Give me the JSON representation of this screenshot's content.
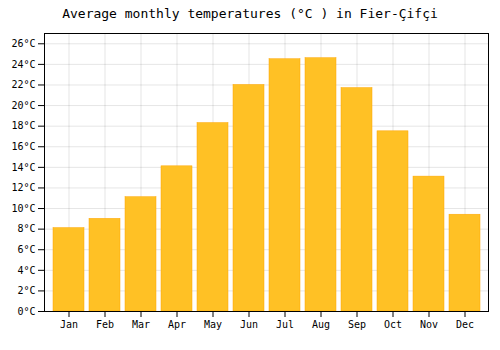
{
  "chart_data": {
    "type": "bar",
    "title": "Average monthly temperatures (°C ) in Fier-Çifçi",
    "categories": [
      "Jan",
      "Feb",
      "Mar",
      "Apr",
      "May",
      "Jun",
      "Jul",
      "Aug",
      "Sep",
      "Oct",
      "Nov",
      "Dec"
    ],
    "values": [
      8.1,
      9.0,
      11.1,
      14.1,
      18.3,
      22.0,
      24.5,
      24.6,
      21.7,
      17.5,
      13.1,
      9.4
    ],
    "color": "#FFC125",
    "ylim": [
      0,
      27
    ],
    "yticks": [
      {
        "value": 0,
        "label": "0°C"
      },
      {
        "value": 2,
        "label": "2°C"
      },
      {
        "value": 4,
        "label": "4°C"
      },
      {
        "value": 6,
        "label": "6°C"
      },
      {
        "value": 8,
        "label": "8°C"
      },
      {
        "value": 10,
        "label": "10°C"
      },
      {
        "value": 12,
        "label": "12°C"
      },
      {
        "value": 14,
        "label": "14°C"
      },
      {
        "value": 16,
        "label": "16°C"
      },
      {
        "value": 18,
        "label": "18°C"
      },
      {
        "value": 20,
        "label": "20°C"
      },
      {
        "value": 22,
        "label": "22°C"
      },
      {
        "value": 24,
        "label": "24°C"
      },
      {
        "value": 26,
        "label": "26°C"
      }
    ],
    "grid": true
  }
}
